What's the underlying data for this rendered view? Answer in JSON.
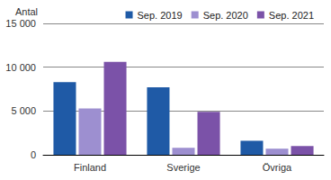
{
  "chart_data": {
    "type": "bar",
    "y_label": "Antal",
    "categories": [
      "Finland",
      "Sverige",
      "Övriga"
    ],
    "series": [
      {
        "name": "Sep. 2019",
        "color": "#1f5aa6",
        "values": [
          8300,
          7700,
          1600
        ]
      },
      {
        "name": "Sep. 2020",
        "color": "#9d8fd0",
        "values": [
          5300,
          800,
          700
        ]
      },
      {
        "name": "Sep. 2021",
        "color": "#7b52a8",
        "values": [
          10600,
          4900,
          1000
        ]
      }
    ],
    "ylim": [
      0,
      15000
    ],
    "yticks": [
      0,
      {
        "value": 5000,
        "label": "5 000"
      },
      {
        "value": 10000,
        "label": "10 000"
      },
      {
        "value": 15000,
        "label": "15 000"
      }
    ],
    "grid": true,
    "legend": "top-right"
  }
}
